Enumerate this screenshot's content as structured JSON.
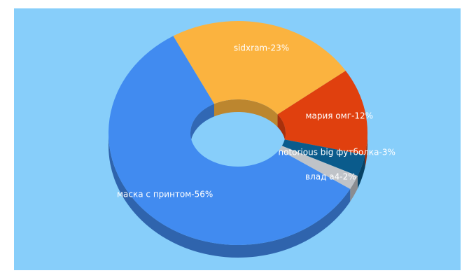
{
  "chart_data": {
    "type": "donut3d",
    "value_labels": [
      "sidxram-23%",
      "мария омг-12%",
      "notorious big футболка-3%",
      "влад а4-2%",
      "маска с принтом-56%"
    ],
    "values": [
      23,
      12,
      3,
      2,
      56
    ],
    "colors": [
      "#fbb33f",
      "#e0400e",
      "#0a5b8c",
      "#bfc3c8",
      "#418bf0"
    ]
  }
}
